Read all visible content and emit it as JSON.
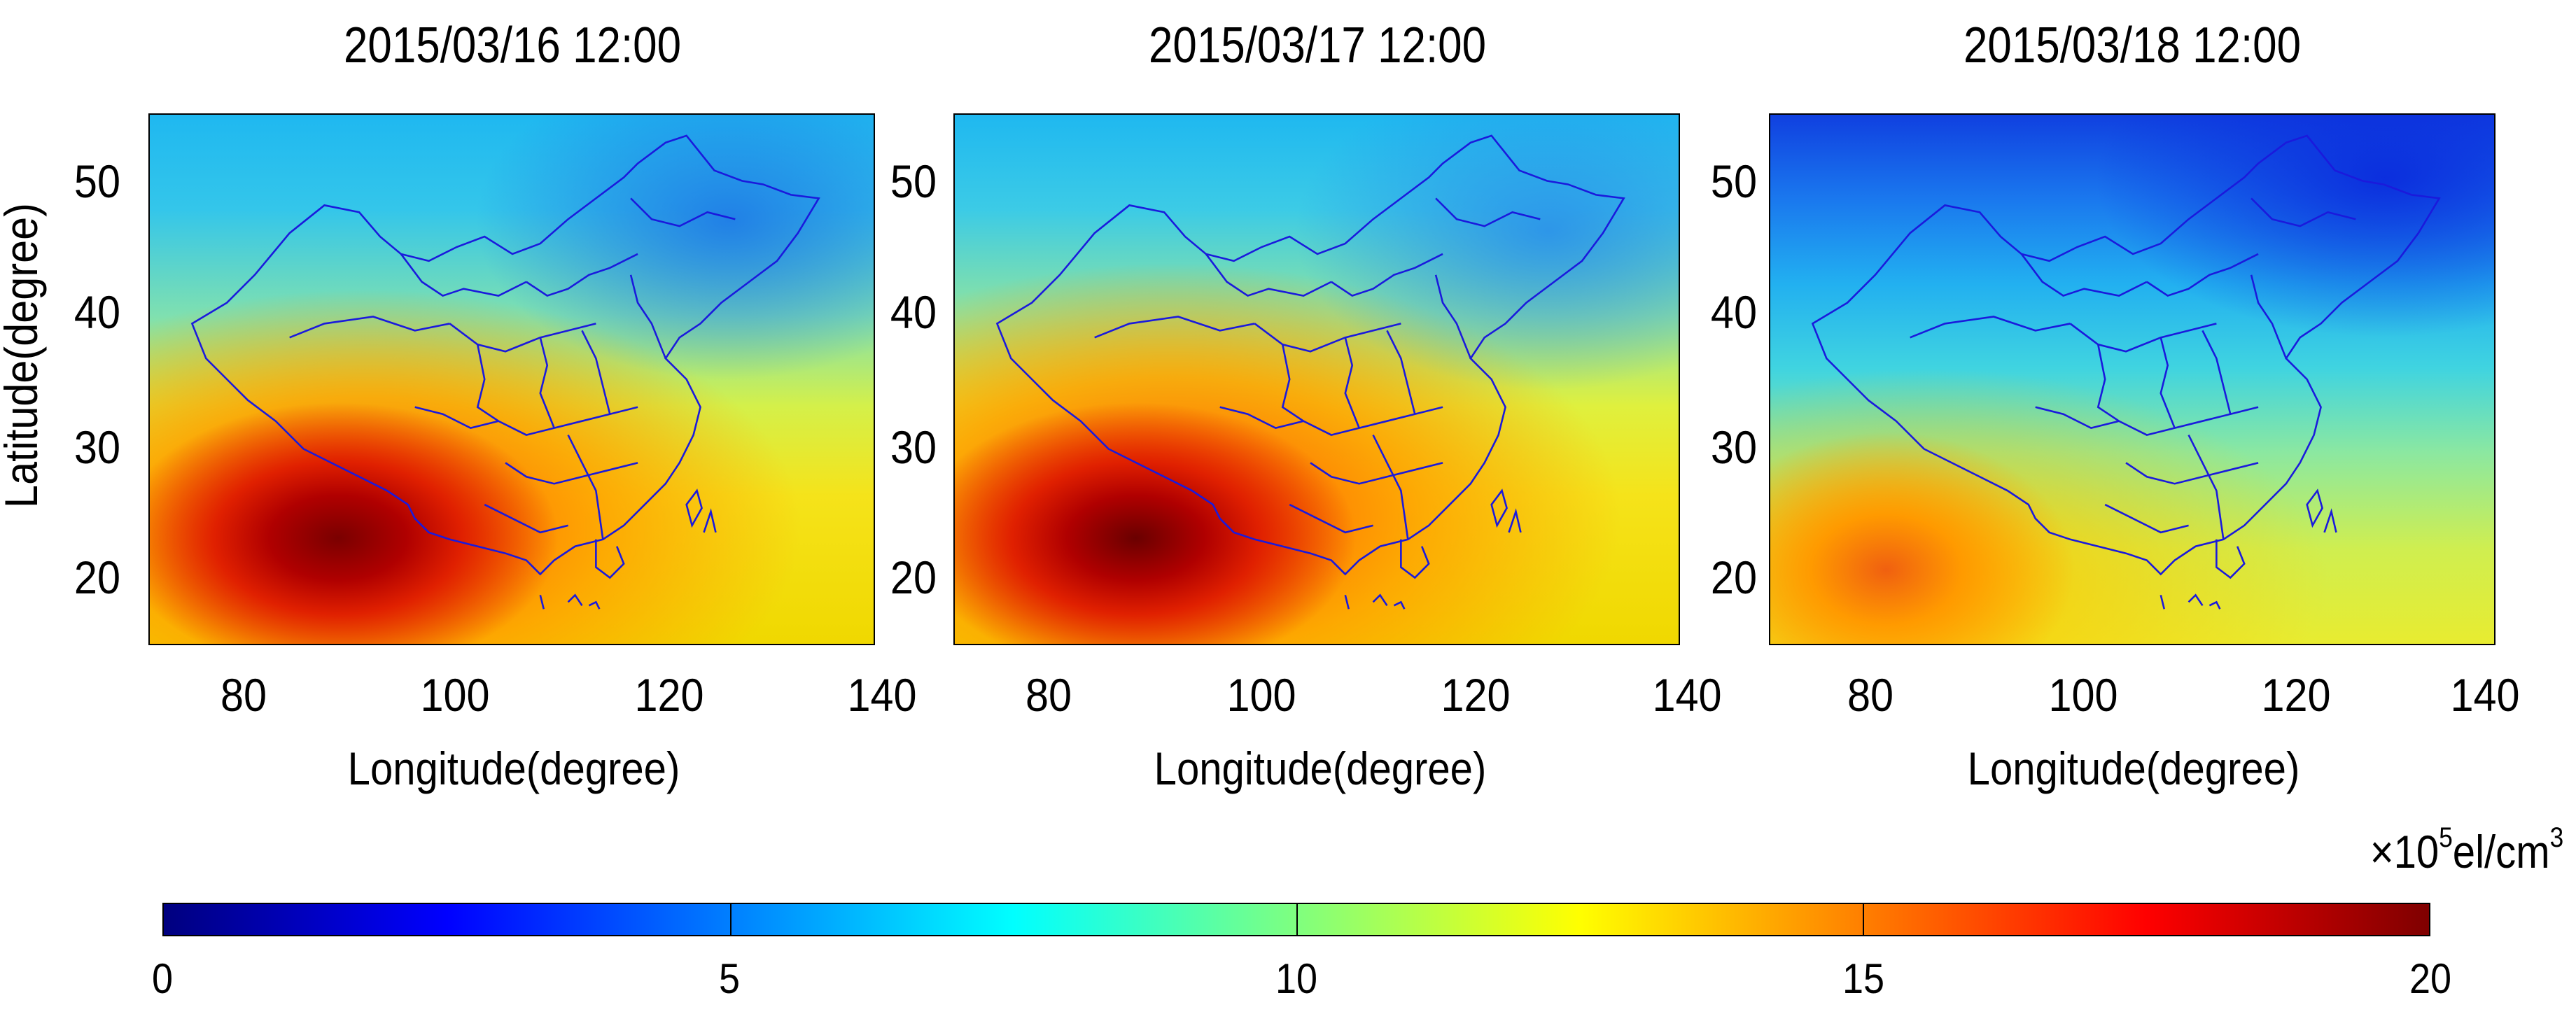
{
  "panels": [
    {
      "title": "2015/03/16 12:00",
      "gradient": "radial-gradient(ellipse 38% 32% at 26% 80%, #7a0000 0%, #b00000 25%, #e02000 45%, rgba(240,80,0,0) 80%), radial-gradient(ellipse 60% 45% at 30% 78%, #ff5a00 0%, rgba(255,160,0,0.85) 55%, rgba(255,220,0,0) 100%), linear-gradient(to bottom, #1fb8f0 0%, #34c6ea 18%, #7fe0b0 38%, #d4f04a 55%, #f5e31a 72%, #f0d800 100%)",
      "overlay": "radial-gradient(ellipse 35% 30% at 80% 20%, rgba(30,120,230,0.9) 0%, rgba(30,160,240,0) 100%)"
    },
    {
      "title": "2015/03/17 12:00",
      "gradient": "radial-gradient(ellipse 38% 32% at 25% 80%, #6a0000 0%, #b00000 25%, #e02000 45%, rgba(240,80,0,0) 80%), radial-gradient(ellipse 62% 48% at 30% 76%, #ff5200 0%, rgba(255,160,0,0.85) 55%, rgba(255,220,0,0) 100%), linear-gradient(to bottom, #1fb8f0 0%, #3ccbe6 18%, #8fe4a0 38%, #dff03e 55%, #f5e31a 72%, #f0d800 100%)",
      "overlay": "radial-gradient(ellipse 35% 30% at 82% 22%, rgba(40,140,235,0.85) 0%, rgba(40,170,240,0) 100%)"
    },
    {
      "title": "2015/03/18 12:00",
      "gradient": "radial-gradient(ellipse 26% 26% at 16% 86%, #f06010 0%, #ff9a00 40%, rgba(255,200,0,0) 100%), radial-gradient(ellipse 55% 40% at 22% 88%, rgba(255,200,0,0.95) 0%, rgba(230,240,40,0) 100%), linear-gradient(to bottom, #1040e0 0%, #1a78ee 16%, #22b0f0 32%, #40d4e0 48%, #8ce8a0 64%, #cfee50 82%, #e8ec30 100%)",
      "overlay": "radial-gradient(ellipse 40% 30% at 85% 12%, rgba(10,40,220,0.9) 0%, rgba(10,60,220,0) 100%)"
    }
  ],
  "axes": {
    "y_label": "Latitude(degree)",
    "x_label": "Longitude(degree)",
    "y_ticks": [
      "50",
      "40",
      "30",
      "20"
    ],
    "x_ticks": [
      "80",
      "100",
      "120",
      "140"
    ]
  },
  "colorbar": {
    "unit_prefix": "×10",
    "unit_exp": "5",
    "unit_mid": "el/cm",
    "unit_exp2": "3",
    "ticks": [
      "0",
      "5",
      "10",
      "15",
      "20"
    ],
    "range": [
      0,
      20
    ]
  },
  "colors": {
    "outline": "#1a1adc",
    "jet": [
      "#00007f",
      "#0000ff",
      "#007fff",
      "#00ffff",
      "#7fff7f",
      "#ffff00",
      "#ff7f00",
      "#ff0000",
      "#7f0000"
    ]
  }
}
